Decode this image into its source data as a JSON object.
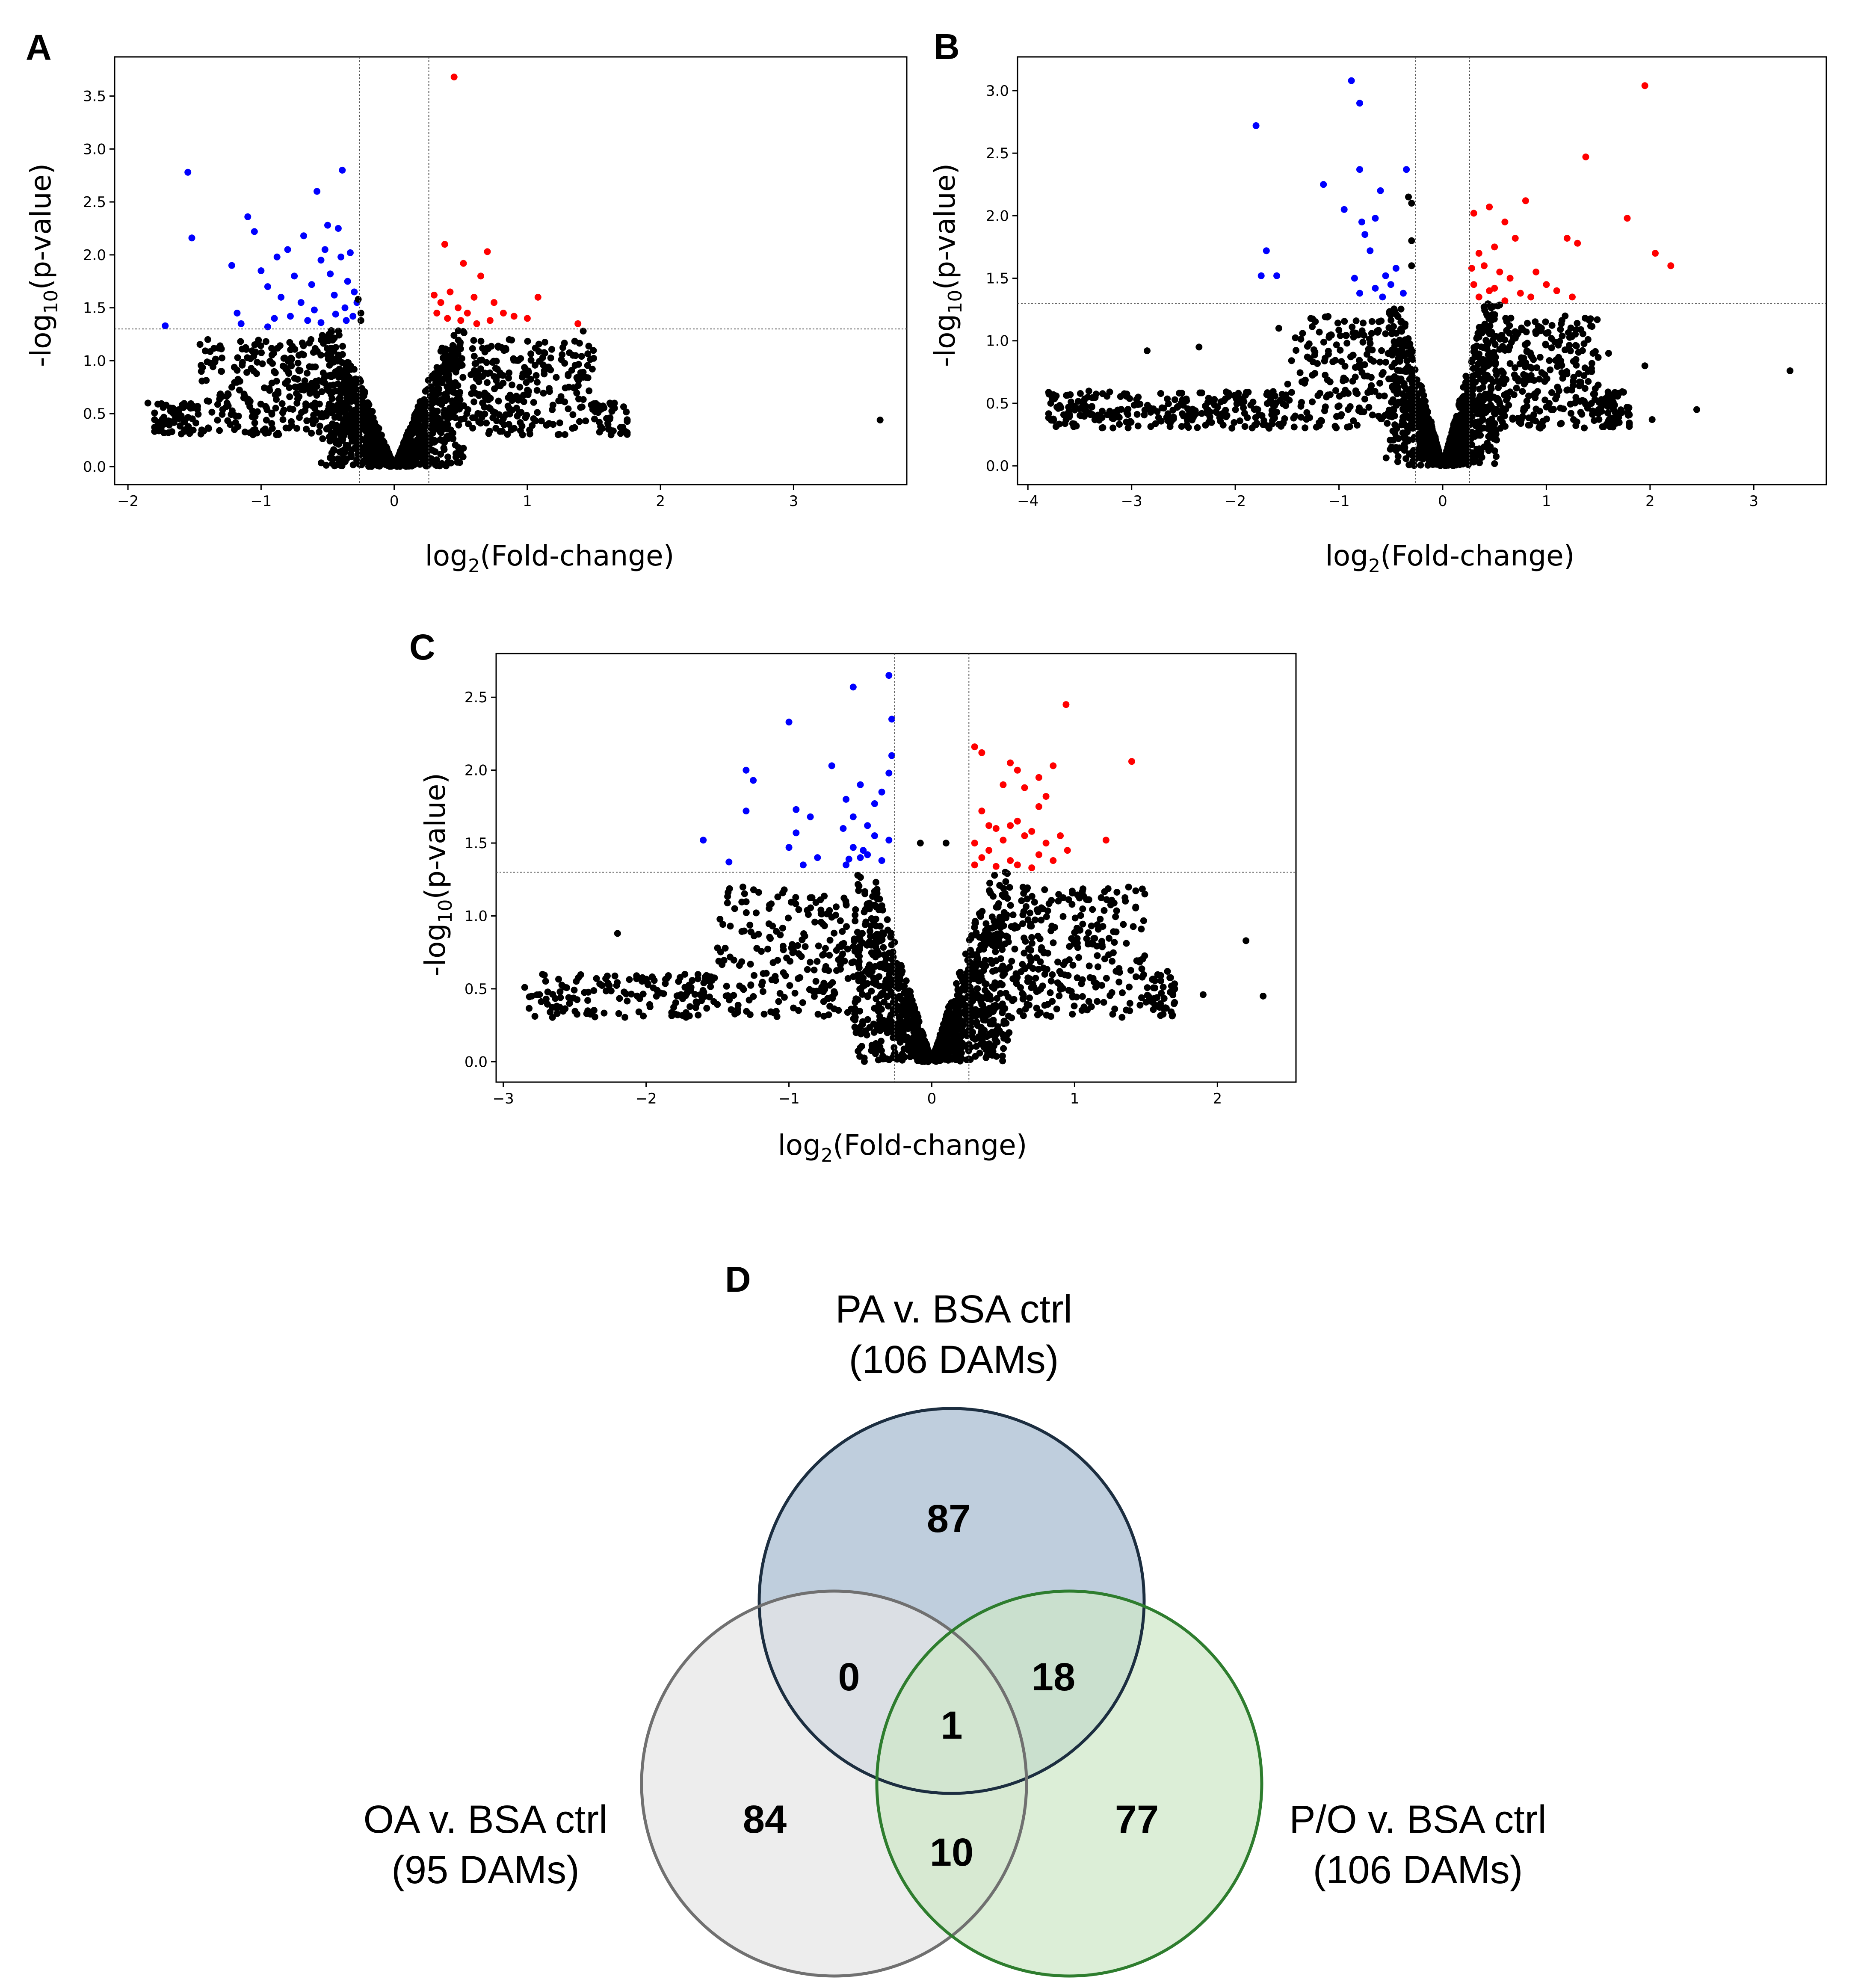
{
  "chart_data": [
    {
      "panel": "A",
      "type": "scatter",
      "title": "",
      "xlabel": "log2(Fold-change)",
      "ylabel": "-log10(p-value)",
      "xlim": [
        -2.1,
        3.85
      ],
      "ylim": [
        -0.17,
        3.87
      ],
      "xticks": [
        -2,
        -1,
        0,
        1,
        2,
        3
      ],
      "yticks": [
        0.0,
        0.5,
        1.0,
        1.5,
        2.0,
        2.5,
        3.0,
        3.5
      ],
      "threshold_lines": {
        "x": [
          -0.26,
          0.26
        ],
        "y": 1.3
      },
      "cloud": {
        "left_x_range": [
          -1.8,
          -0.15
        ],
        "right_x_range": [
          0.1,
          1.75
        ],
        "y_max": 1.3
      },
      "series": [
        {
          "name": "downregulated",
          "color": "#0000ff",
          "points": [
            [
              -1.55,
              2.78
            ],
            [
              -1.52,
              2.16
            ],
            [
              -1.22,
              1.9
            ],
            [
              -1.1,
              2.36
            ],
            [
              -1.05,
              2.22
            ],
            [
              -1.0,
              1.85
            ],
            [
              -0.95,
              1.7
            ],
            [
              -0.88,
              1.98
            ],
            [
              -0.85,
              1.6
            ],
            [
              -0.8,
              2.05
            ],
            [
              -0.75,
              1.8
            ],
            [
              -0.7,
              1.55
            ],
            [
              -0.68,
              2.18
            ],
            [
              -0.62,
              1.72
            ],
            [
              -0.58,
              2.6
            ],
            [
              -0.55,
              1.95
            ],
            [
              -0.52,
              2.05
            ],
            [
              -0.5,
              2.28
            ],
            [
              -0.48,
              1.82
            ],
            [
              -0.45,
              1.62
            ],
            [
              -0.42,
              2.25
            ],
            [
              -0.4,
              1.98
            ],
            [
              -0.39,
              2.8
            ],
            [
              -0.37,
              1.5
            ],
            [
              -0.35,
              1.75
            ],
            [
              -0.33,
              2.02
            ],
            [
              -0.31,
              1.42
            ],
            [
              -0.3,
              1.65
            ],
            [
              -1.18,
              1.45
            ],
            [
              -0.9,
              1.4
            ],
            [
              -0.78,
              1.42
            ],
            [
              -0.65,
              1.38
            ],
            [
              -0.6,
              1.48
            ],
            [
              -0.44,
              1.44
            ],
            [
              -0.36,
              1.38
            ],
            [
              -1.72,
              1.33
            ],
            [
              -1.15,
              1.35
            ],
            [
              -0.95,
              1.32
            ],
            [
              -0.55,
              1.36
            ],
            [
              -0.28,
              1.55
            ]
          ]
        },
        {
          "name": "upregulated",
          "color": "#ff0000",
          "points": [
            [
              0.45,
              3.68
            ],
            [
              0.38,
              2.1
            ],
            [
              0.7,
              2.03
            ],
            [
              0.52,
              1.92
            ],
            [
              0.65,
              1.8
            ],
            [
              0.3,
              1.62
            ],
            [
              0.35,
              1.55
            ],
            [
              0.42,
              1.65
            ],
            [
              0.48,
              1.5
            ],
            [
              0.55,
              1.45
            ],
            [
              0.6,
              1.6
            ],
            [
              0.75,
              1.55
            ],
            [
              0.82,
              1.45
            ],
            [
              0.9,
              1.42
            ],
            [
              1.0,
              1.4
            ],
            [
              1.08,
              1.6
            ],
            [
              0.4,
              1.4
            ],
            [
              0.5,
              1.38
            ],
            [
              0.32,
              1.45
            ],
            [
              0.62,
              1.35
            ],
            [
              1.38,
              1.35
            ],
            [
              0.72,
              1.38
            ]
          ]
        },
        {
          "name": "not significant",
          "color": "#000000",
          "points": [
            [
              3.65,
              0.44
            ],
            [
              -1.85,
              0.6
            ],
            [
              -1.75,
              0.37
            ],
            [
              -1.6,
              0.48
            ],
            [
              -1.4,
              1.2
            ],
            [
              -1.3,
              0.9
            ],
            [
              -1.2,
              0.35
            ],
            [
              1.42,
              1.28
            ],
            [
              1.55,
              0.38
            ],
            [
              1.7,
              0.37
            ],
            [
              1.62,
              0.6
            ],
            [
              -0.25,
              1.38
            ],
            [
              -0.25,
              1.45
            ],
            [
              -0.27,
              1.58
            ]
          ]
        }
      ]
    },
    {
      "panel": "B",
      "type": "scatter",
      "title": "",
      "xlabel": "log2(Fold-change)",
      "ylabel": "-log10(p-value)",
      "xlim": [
        -4.1,
        3.7
      ],
      "ylim": [
        -0.15,
        3.27
      ],
      "xticks": [
        -4,
        -3,
        -2,
        -1,
        0,
        1,
        2,
        3
      ],
      "yticks": [
        0.0,
        0.5,
        1.0,
        1.5,
        2.0,
        2.5,
        3.0
      ],
      "threshold_lines": {
        "x": [
          -0.26,
          0.26
        ],
        "y": 1.3
      },
      "cloud": {
        "left_x_range": [
          -3.8,
          -0.1
        ],
        "right_x_range": [
          0.1,
          1.8
        ],
        "y_max": 1.3
      },
      "series": [
        {
          "name": "downregulated",
          "color": "#0000ff",
          "points": [
            [
              -0.88,
              3.08
            ],
            [
              -0.8,
              2.9
            ],
            [
              -1.8,
              2.72
            ],
            [
              -0.8,
              2.37
            ],
            [
              -0.35,
              2.37
            ],
            [
              -1.15,
              2.25
            ],
            [
              -0.6,
              2.2
            ],
            [
              -0.95,
              2.05
            ],
            [
              -0.65,
              1.98
            ],
            [
              -0.78,
              1.95
            ],
            [
              -1.7,
              1.72
            ],
            [
              -0.75,
              1.85
            ],
            [
              -0.7,
              1.72
            ],
            [
              -1.75,
              1.52
            ],
            [
              -1.6,
              1.52
            ],
            [
              -0.45,
              1.58
            ],
            [
              -0.55,
              1.52
            ],
            [
              -0.85,
              1.5
            ],
            [
              -0.5,
              1.45
            ],
            [
              -0.65,
              1.42
            ],
            [
              -0.38,
              1.38
            ],
            [
              -0.8,
              1.38
            ],
            [
              -0.58,
              1.35
            ]
          ]
        },
        {
          "name": "upregulated",
          "color": "#ff0000",
          "points": [
            [
              1.95,
              3.04
            ],
            [
              1.38,
              2.47
            ],
            [
              1.78,
              1.98
            ],
            [
              0.8,
              2.12
            ],
            [
              0.45,
              2.07
            ],
            [
              0.3,
              2.02
            ],
            [
              0.6,
              1.95
            ],
            [
              1.2,
              1.82
            ],
            [
              1.3,
              1.78
            ],
            [
              2.05,
              1.7
            ],
            [
              2.2,
              1.6
            ],
            [
              0.5,
              1.75
            ],
            [
              0.7,
              1.82
            ],
            [
              0.35,
              1.7
            ],
            [
              0.4,
              1.6
            ],
            [
              0.55,
              1.55
            ],
            [
              0.65,
              1.5
            ],
            [
              0.9,
              1.55
            ],
            [
              1.0,
              1.45
            ],
            [
              0.3,
              1.45
            ],
            [
              0.45,
              1.4
            ],
            [
              0.75,
              1.38
            ],
            [
              0.85,
              1.35
            ],
            [
              1.1,
              1.4
            ],
            [
              1.25,
              1.35
            ],
            [
              0.35,
              1.35
            ],
            [
              0.6,
              1.32
            ],
            [
              0.28,
              1.58
            ],
            [
              0.5,
              1.42
            ]
          ]
        },
        {
          "name": "not significant",
          "color": "#000000",
          "points": [
            [
              3.35,
              0.76
            ],
            [
              2.45,
              0.45
            ],
            [
              2.02,
              0.37
            ],
            [
              1.65,
              0.37
            ],
            [
              1.95,
              0.8
            ],
            [
              1.45,
              0.9
            ],
            [
              1.6,
              0.9
            ],
            [
              -2.85,
              0.92
            ],
            [
              -2.35,
              0.95
            ],
            [
              -1.58,
              1.1
            ],
            [
              -3.78,
              0.5
            ],
            [
              -3.72,
              0.47
            ],
            [
              -3.6,
              0.44
            ],
            [
              -0.33,
              2.15
            ],
            [
              -0.3,
              2.1
            ],
            [
              -0.3,
              1.8
            ],
            [
              -0.3,
              1.6
            ]
          ]
        }
      ]
    },
    {
      "panel": "C",
      "type": "scatter",
      "title": "",
      "xlabel": "log2(Fold-change)",
      "ylabel": "-log10(p-value)",
      "xlim": [
        -3.05,
        2.55
      ],
      "ylim": [
        -0.14,
        2.8
      ],
      "xticks": [
        -3,
        -2,
        -1,
        0,
        1,
        2
      ],
      "yticks": [
        0.0,
        0.5,
        1.0,
        1.5,
        2.0,
        2.5
      ],
      "threshold_lines": {
        "x": [
          -0.26,
          0.26
        ],
        "y": 1.3
      },
      "cloud": {
        "left_x_range": [
          -2.85,
          -0.05
        ],
        "right_x_range": [
          0.05,
          1.7
        ],
        "y_max": 1.3
      },
      "series": [
        {
          "name": "downregulated",
          "color": "#0000ff",
          "points": [
            [
              -0.3,
              2.65
            ],
            [
              -0.55,
              2.57
            ],
            [
              -0.28,
              2.35
            ],
            [
              -1.0,
              2.33
            ],
            [
              -0.28,
              2.1
            ],
            [
              -0.7,
              2.03
            ],
            [
              -0.3,
              1.98
            ],
            [
              -1.3,
              2.0
            ],
            [
              -1.25,
              1.93
            ],
            [
              -0.5,
              1.9
            ],
            [
              -0.35,
              1.85
            ],
            [
              -0.6,
              1.8
            ],
            [
              -0.4,
              1.77
            ],
            [
              -1.3,
              1.72
            ],
            [
              -0.95,
              1.73
            ],
            [
              -0.85,
              1.68
            ],
            [
              -0.55,
              1.68
            ],
            [
              -0.45,
              1.62
            ],
            [
              -0.62,
              1.6
            ],
            [
              -0.95,
              1.57
            ],
            [
              -0.4,
              1.55
            ],
            [
              -0.3,
              1.52
            ],
            [
              -1.6,
              1.52
            ],
            [
              -1.0,
              1.47
            ],
            [
              -0.55,
              1.47
            ],
            [
              -0.45,
              1.42
            ],
            [
              -0.5,
              1.4
            ],
            [
              -0.8,
              1.4
            ],
            [
              -0.35,
              1.38
            ],
            [
              -0.6,
              1.35
            ],
            [
              -1.42,
              1.37
            ],
            [
              -0.9,
              1.35
            ],
            [
              -0.48,
              1.45
            ],
            [
              -0.58,
              1.39
            ]
          ]
        },
        {
          "name": "upregulated",
          "color": "#ff0000",
          "points": [
            [
              0.94,
              2.45
            ],
            [
              1.4,
              2.06
            ],
            [
              0.3,
              2.16
            ],
            [
              0.35,
              2.12
            ],
            [
              0.55,
              2.05
            ],
            [
              0.85,
              2.03
            ],
            [
              0.6,
              2.0
            ],
            [
              0.75,
              1.95
            ],
            [
              0.5,
              1.9
            ],
            [
              0.65,
              1.88
            ],
            [
              0.8,
              1.82
            ],
            [
              0.75,
              1.75
            ],
            [
              0.35,
              1.72
            ],
            [
              0.6,
              1.65
            ],
            [
              0.55,
              1.62
            ],
            [
              0.45,
              1.6
            ],
            [
              0.7,
              1.58
            ],
            [
              0.65,
              1.55
            ],
            [
              0.5,
              1.52
            ],
            [
              0.8,
              1.5
            ],
            [
              0.9,
              1.55
            ],
            [
              0.3,
              1.5
            ],
            [
              1.22,
              1.52
            ],
            [
              0.4,
              1.45
            ],
            [
              0.35,
              1.4
            ],
            [
              0.55,
              1.38
            ],
            [
              0.6,
              1.35
            ],
            [
              0.75,
              1.42
            ],
            [
              0.85,
              1.38
            ],
            [
              0.3,
              1.35
            ],
            [
              0.45,
              1.34
            ],
            [
              0.7,
              1.33
            ],
            [
              0.95,
              1.45
            ],
            [
              0.4,
              1.62
            ]
          ]
        },
        {
          "name": "not significant",
          "color": "#000000",
          "points": [
            [
              2.32,
              0.45
            ],
            [
              2.2,
              0.83
            ],
            [
              1.9,
              0.46
            ],
            [
              1.65,
              0.62
            ],
            [
              -2.8,
              0.45
            ],
            [
              -2.7,
              0.43
            ],
            [
              -2.6,
              0.44
            ],
            [
              -2.2,
              0.88
            ],
            [
              -1.5,
              0.78
            ],
            [
              -1.38,
              1.05
            ],
            [
              0.1,
              1.5
            ],
            [
              -0.08,
              1.5
            ]
          ]
        }
      ]
    }
  ],
  "panels": {
    "a": {
      "letter": "A"
    },
    "b": {
      "letter": "B"
    },
    "c": {
      "letter": "C"
    },
    "d": {
      "letter": "D"
    }
  },
  "axis": {
    "x_main": "log",
    "x_sub": "2",
    "x_rest": "(Fold-change)",
    "y_main": "-log",
    "y_sub": "10",
    "y_rest": "(p-value)"
  },
  "venn": {
    "sets": [
      {
        "name": "PA v. BSA ctrl",
        "count_label": "(106 DAMs)",
        "fill": "#bccbdb",
        "stroke": "#1c2e40"
      },
      {
        "name": "OA v. BSA ctrl",
        "count_label": "(95 DAMs)",
        "fill": "#e6e6e6",
        "stroke": "#707070"
      },
      {
        "name": "P/O v. BSA ctrl",
        "count_label": "(106 DAMs)",
        "fill": "#cfe8c8",
        "stroke": "#2e7d2e"
      }
    ],
    "regions": {
      "pa_only": "87",
      "oa_only": "84",
      "po_only": "77",
      "pa_oa": "0",
      "pa_po": "18",
      "oa_po": "10",
      "all": "1"
    }
  }
}
